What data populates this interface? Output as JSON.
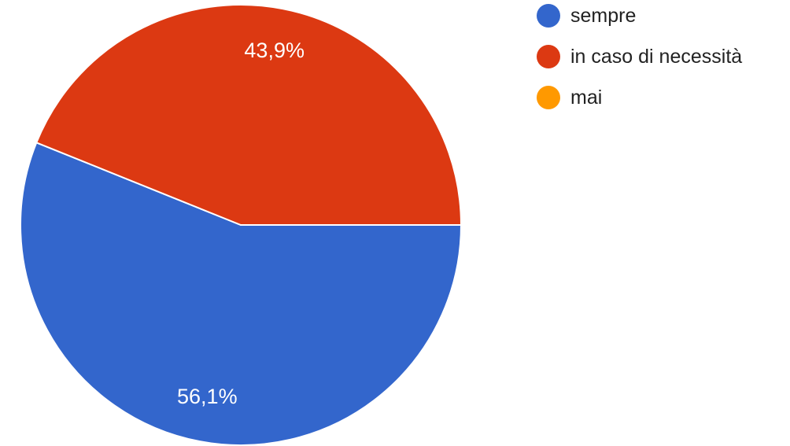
{
  "chart_data": {
    "type": "pie",
    "categories": [
      "sempre",
      "in caso di necessità",
      "mai"
    ],
    "values": [
      56.1,
      43.9,
      0
    ],
    "slice_labels": [
      "56,1%",
      "43,9%",
      ""
    ],
    "colors": [
      "#3366cc",
      "#dc3912",
      "#ff9900"
    ],
    "legend": {
      "placement": "right",
      "entries": [
        "sempre",
        "in caso di necessità",
        "mai"
      ]
    }
  }
}
